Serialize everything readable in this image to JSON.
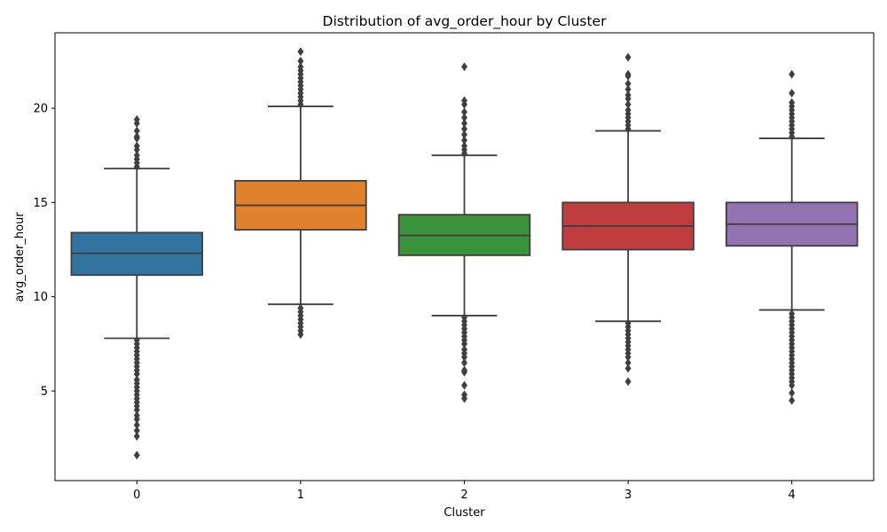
{
  "chart_data": {
    "type": "box",
    "title": "Distribution of avg_order_hour by Cluster",
    "xlabel": "Cluster",
    "ylabel": "avg_order_hour",
    "ylim": [
      0.25,
      24.0
    ],
    "yticks": [
      5,
      10,
      15,
      20
    ],
    "grid": false,
    "categories": [
      "0",
      "1",
      "2",
      "3",
      "4"
    ],
    "series": [
      {
        "category": "0",
        "color": "#3274a1",
        "whisker_low": 7.8,
        "q1": 11.15,
        "median": 12.3,
        "q3": 13.4,
        "whisker_high": 16.8,
        "outliers": [
          1.6,
          2.6,
          2.9,
          3.2,
          3.5,
          3.7,
          4.0,
          4.2,
          4.4,
          4.6,
          4.8,
          5.0,
          5.2,
          5.4,
          5.6,
          5.9,
          6.1,
          6.3,
          6.5,
          6.7,
          6.9,
          7.1,
          7.3,
          7.5,
          7.7,
          16.9,
          17.1,
          17.3,
          17.5,
          17.8,
          18.0,
          18.4,
          18.5,
          18.8,
          19.2,
          19.4
        ]
      },
      {
        "category": "1",
        "color": "#e1812c",
        "whisker_low": 9.6,
        "q1": 13.55,
        "median": 14.85,
        "q3": 16.15,
        "whisker_high": 20.1,
        "outliers": [
          8.0,
          8.2,
          8.4,
          8.6,
          8.8,
          9.0,
          9.2,
          9.4,
          20.2,
          20.4,
          20.6,
          20.8,
          21.0,
          21.2,
          21.4,
          21.6,
          21.8,
          22.0,
          22.2,
          22.5,
          23.0
        ]
      },
      {
        "category": "2",
        "color": "#3a923a",
        "whisker_low": 9.0,
        "q1": 12.2,
        "median": 13.25,
        "q3": 14.35,
        "whisker_high": 17.5,
        "outliers": [
          4.6,
          4.8,
          5.3,
          6.0,
          6.1,
          6.5,
          6.8,
          7.0,
          7.2,
          7.5,
          7.7,
          7.9,
          8.1,
          8.3,
          8.5,
          8.7,
          8.9,
          17.6,
          17.8,
          18.0,
          18.3,
          18.6,
          18.9,
          19.2,
          19.5,
          19.8,
          20.2,
          20.4,
          22.2
        ]
      },
      {
        "category": "3",
        "color": "#c03d3e",
        "whisker_low": 8.7,
        "q1": 12.5,
        "median": 13.75,
        "q3": 15.0,
        "whisker_high": 18.8,
        "outliers": [
          5.5,
          6.2,
          6.5,
          6.8,
          7.0,
          7.2,
          7.4,
          7.6,
          7.8,
          8.0,
          8.2,
          8.4,
          8.6,
          18.9,
          19.1,
          19.3,
          19.5,
          19.7,
          19.9,
          20.2,
          20.5,
          20.7,
          21.0,
          21.3,
          21.7,
          21.8,
          22.7
        ]
      },
      {
        "category": "4",
        "color": "#9372b2",
        "whisker_low": 9.3,
        "q1": 12.7,
        "median": 13.85,
        "q3": 15.0,
        "whisker_high": 18.4,
        "outliers": [
          4.5,
          4.9,
          5.3,
          5.5,
          5.7,
          5.9,
          6.1,
          6.3,
          6.5,
          6.7,
          6.9,
          7.1,
          7.3,
          7.5,
          7.7,
          7.9,
          8.1,
          8.3,
          8.5,
          8.7,
          8.9,
          9.1,
          18.5,
          18.7,
          18.9,
          19.1,
          19.3,
          19.5,
          19.7,
          19.9,
          20.1,
          20.3,
          20.8,
          21.8
        ]
      }
    ]
  }
}
